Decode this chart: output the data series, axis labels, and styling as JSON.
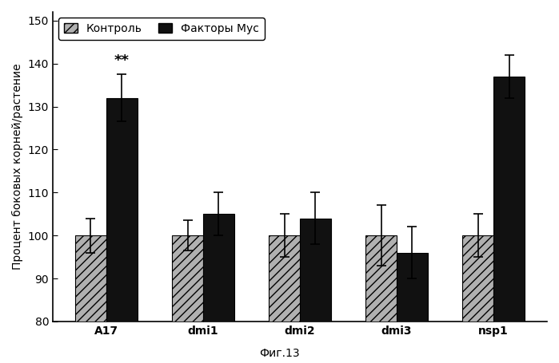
{
  "categories": [
    "A17",
    "dmi1",
    "dmi2",
    "dmi3",
    "nsp1"
  ],
  "control_values": [
    100,
    100,
    100,
    100,
    100
  ],
  "myc_values": [
    132,
    105,
    104,
    96,
    137
  ],
  "control_errors": [
    4,
    3.5,
    5,
    7,
    5
  ],
  "myc_errors": [
    5.5,
    5,
    6,
    6,
    5
  ],
  "control_color": "#b0b0b0",
  "myc_color": "#111111",
  "control_hatch": "///",
  "ylabel": "Процент боковых корней/растение",
  "ylim": [
    80,
    152
  ],
  "yticks": [
    80,
    90,
    100,
    110,
    120,
    130,
    140,
    150
  ],
  "legend_control": "Контроль",
  "legend_myc": "Факторы Мус",
  "annotation_text": "**",
  "annotation_group": 0,
  "figure_label": "Фиг.13",
  "background_color": "#ffffff",
  "bar_width": 0.32,
  "axis_fontsize": 10,
  "tick_fontsize": 10,
  "legend_fontsize": 10
}
